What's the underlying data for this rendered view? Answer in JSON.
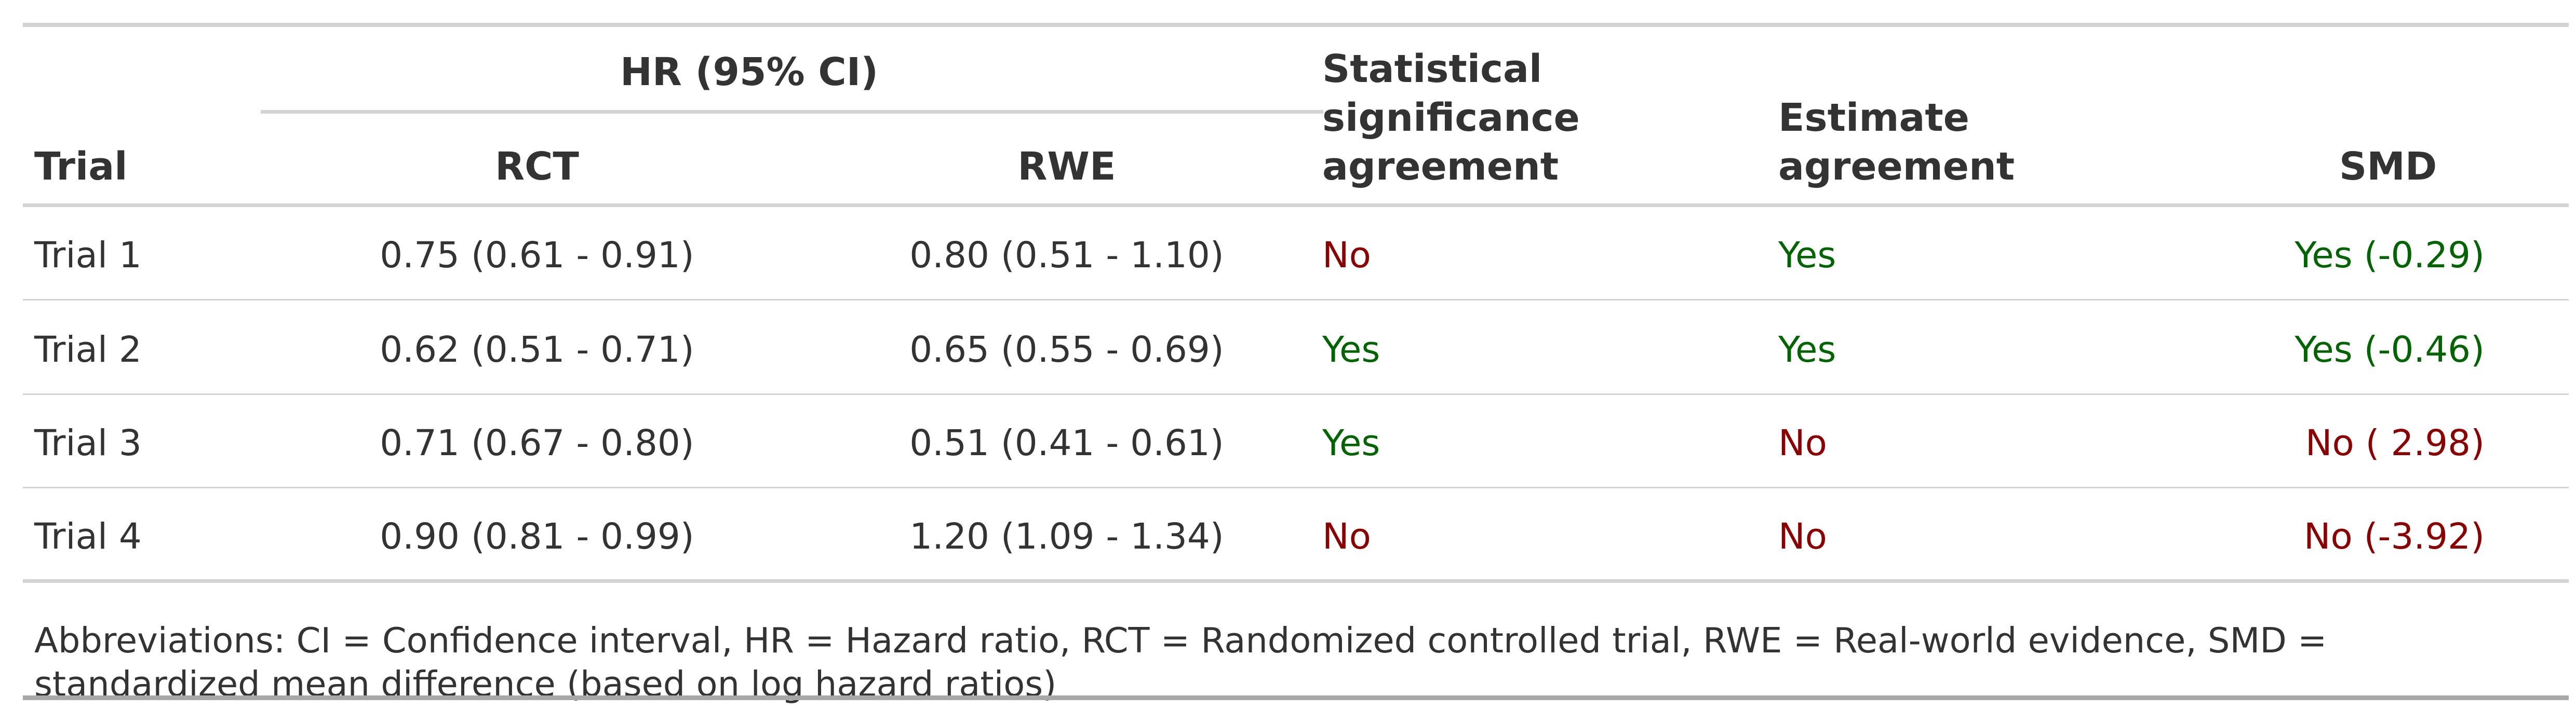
{
  "header": {
    "trial": "Trial",
    "spanner": "HR (95% CI)",
    "rct": "RCT",
    "rwe": "RWE",
    "significance": [
      "Statistical",
      "significance",
      "agreement"
    ],
    "estimate": [
      "Estimate",
      "agreement"
    ],
    "smd": "SMD"
  },
  "rows": [
    {
      "trial": "Trial 1",
      "rct": "0.75 (0.61 - 0.91)",
      "rwe": "0.80 (0.51 - 1.10)",
      "significance": "No",
      "estimate": "Yes",
      "smd": "Yes (-0.29)"
    },
    {
      "trial": "Trial 2",
      "rct": "0.62 (0.51 - 0.71)",
      "rwe": "0.65 (0.55 - 0.69)",
      "significance": "Yes",
      "estimate": "Yes",
      "smd": "Yes (-0.46)"
    },
    {
      "trial": "Trial 3",
      "rct": "0.71 (0.67 - 0.80)",
      "rwe": "0.51 (0.41 - 0.61)",
      "significance": "Yes",
      "estimate": "No",
      "smd": "No ( 2.98)"
    },
    {
      "trial": "Trial 4",
      "rct": "0.90 (0.81 - 0.99)",
      "rwe": "1.20 (1.09 - 1.34)",
      "significance": "No",
      "estimate": "No",
      "smd": "No (-3.92)"
    }
  ],
  "colors": {
    "yes": "#006400",
    "no": "#8b0000",
    "text": "#333333",
    "rule": "#d3d3d3"
  },
  "footnote": "Abbreviations: CI = Confidence interval, HR = Hazard ratio, RCT = Randomized controlled trial, RWE = Real-world evidence, SMD = standardized mean difference (based on log hazard ratios)"
}
